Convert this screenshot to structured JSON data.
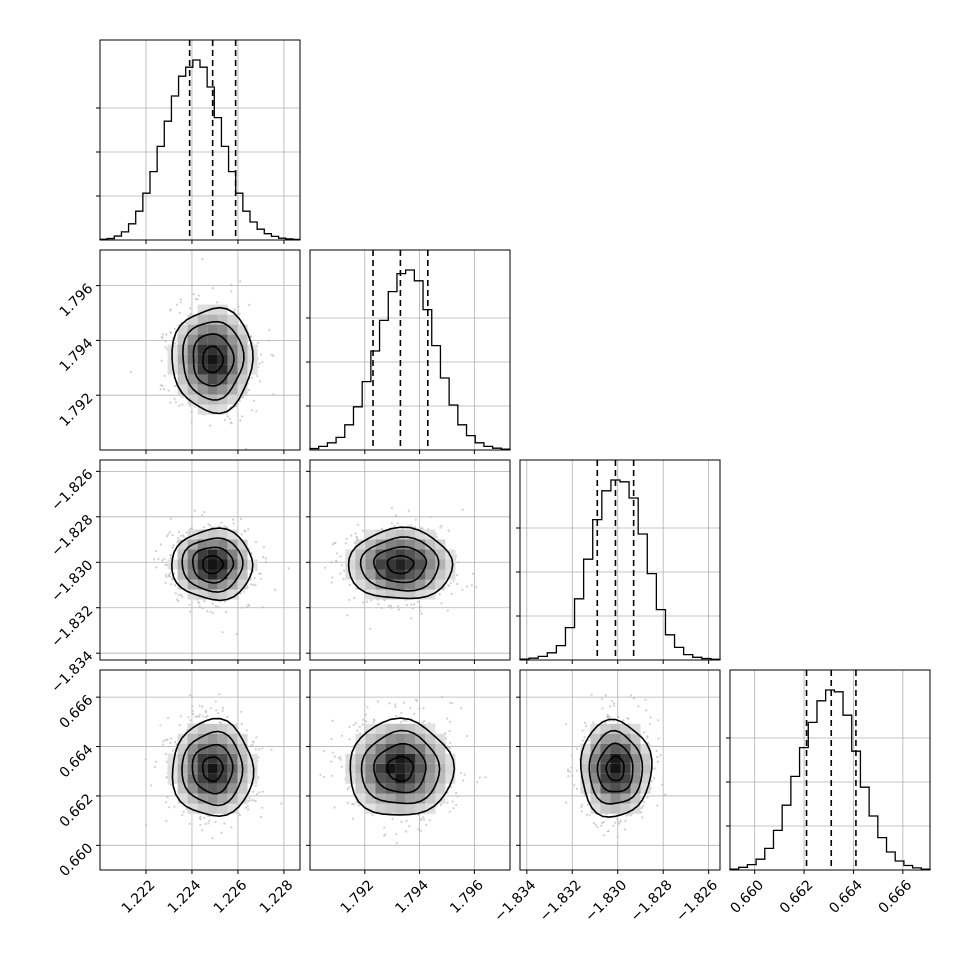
{
  "chart_data": {
    "type": "corner",
    "title": "",
    "parameters": [
      {
        "index": 0,
        "center": 1.2249,
        "sigma": 0.00088,
        "range": [
          1.22,
          1.2287
        ],
        "ticks": [
          "1.222",
          "1.224",
          "1.226",
          "1.228"
        ],
        "tick_values": [
          1.222,
          1.224,
          1.226,
          1.228
        ],
        "quantiles": [
          1.2239,
          1.2249,
          1.2259
        ],
        "hist": [
          0.4,
          0.8,
          2.2,
          4.5,
          9,
          16,
          26,
          38,
          52,
          66,
          80,
          91,
          96,
          100,
          96,
          85,
          68,
          52,
          38,
          26,
          16,
          10,
          6,
          3.5,
          2,
          1,
          0.6,
          0.3
        ]
      },
      {
        "index": 1,
        "center": 1.7933,
        "sigma": 0.00095,
        "range": [
          1.79,
          1.7973
        ],
        "ticks": [
          "1.792",
          "1.794",
          "1.796"
        ],
        "tick_values": [
          1.792,
          1.794,
          1.796
        ],
        "quantiles": [
          1.7923,
          1.7933,
          1.7943
        ],
        "hist": [
          0.8,
          2,
          4,
          7,
          14,
          24,
          38,
          55,
          72,
          88,
          98,
          100,
          94,
          78,
          58,
          40,
          25,
          14,
          8,
          4,
          2,
          1,
          0.5
        ]
      },
      {
        "index": 2,
        "center": -1.8301,
        "sigma": 0.00078,
        "range": [
          -1.8343,
          -1.8255
        ],
        "ticks": [
          "−1.834",
          "−1.832",
          "−1.830",
          "−1.828",
          "−1.826"
        ],
        "tick_values": [
          -1.834,
          -1.832,
          -1.83,
          -1.828,
          -1.826
        ],
        "quantiles": [
          -1.8309,
          -1.8301,
          -1.8293
        ],
        "hist": [
          0.5,
          1,
          2,
          4,
          8,
          18,
          34,
          56,
          78,
          94,
          100,
          99,
          90,
          70,
          48,
          28,
          14,
          7,
          3,
          1.5,
          0.8,
          0.4
        ]
      },
      {
        "index": 3,
        "center": 0.6631,
        "sigma": 0.00098,
        "range": [
          0.659,
          0.6671
        ],
        "ticks": [
          "0.660",
          "0.662",
          "0.664",
          "0.666"
        ],
        "tick_values": [
          0.66,
          0.662,
          0.664,
          0.666
        ],
        "quantiles": [
          0.6621,
          0.6631,
          0.6641
        ],
        "hist": [
          0.5,
          1.5,
          3,
          6,
          12,
          22,
          36,
          52,
          68,
          82,
          94,
          100,
          99,
          86,
          66,
          46,
          30,
          18,
          10,
          5,
          2.5,
          1.2,
          0.5
        ]
      }
    ],
    "grid": true,
    "quantile_levels": [
      0.16,
      0.5,
      0.84
    ],
    "contour_levels_sigma": [
      0.5,
      1.0,
      1.5,
      2.0
    ]
  }
}
